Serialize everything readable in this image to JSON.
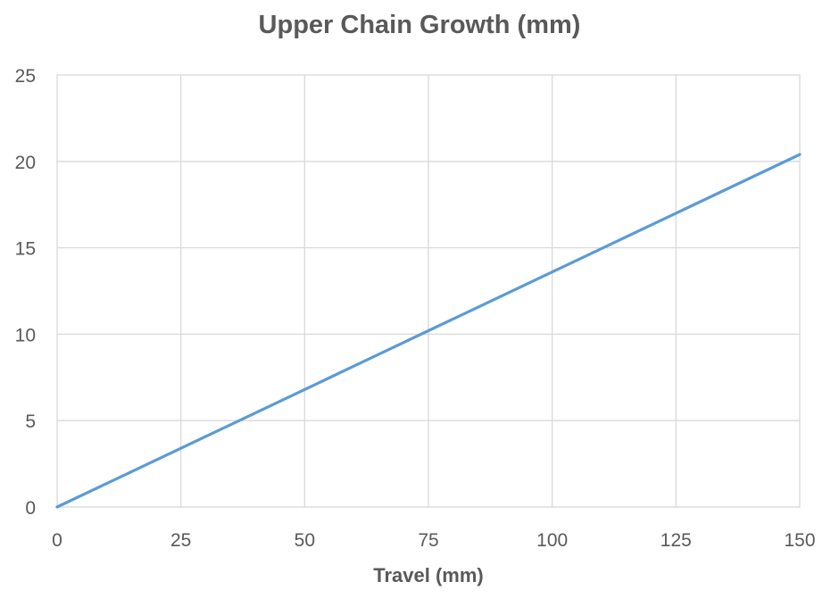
{
  "chart_data": {
    "type": "line",
    "title": "Upper Chain Growth (mm)",
    "xlabel": "Travel (mm)",
    "ylabel": "",
    "xlim": [
      0,
      150
    ],
    "ylim": [
      0,
      25
    ],
    "x_ticks": [
      0,
      25,
      50,
      75,
      100,
      125,
      150
    ],
    "y_ticks": [
      0,
      5,
      10,
      15,
      20,
      25
    ],
    "grid": true,
    "series": [
      {
        "color": "#5B9BD5",
        "x": [
          0,
          25,
          50,
          75,
          100,
          125,
          150
        ],
        "values": [
          0,
          3.4,
          6.8,
          10.2,
          13.6,
          17.0,
          20.4
        ]
      }
    ]
  }
}
